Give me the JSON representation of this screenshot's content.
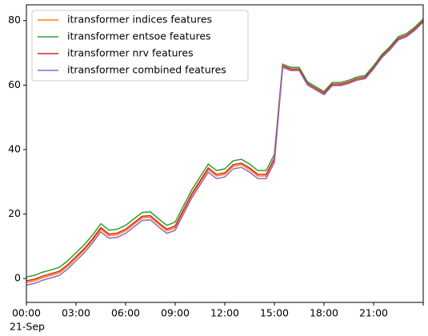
{
  "chart_data": {
    "type": "line",
    "x": [
      0,
      0.5,
      1,
      1.5,
      2,
      2.5,
      3,
      3.5,
      4,
      4.5,
      5,
      5.5,
      6,
      6.5,
      7,
      7.5,
      8,
      8.5,
      9,
      9.5,
      10,
      10.5,
      11,
      11.5,
      12,
      12.5,
      13,
      13.5,
      14,
      14.5,
      15,
      15.5,
      16,
      16.5,
      17,
      17.5,
      18,
      18.5,
      19,
      19.5,
      20,
      20.5,
      21,
      21.5,
      22,
      22.5,
      23,
      23.5,
      24
    ],
    "series": [
      {
        "name": "itransformer indices features",
        "color": "#ff7f0e",
        "values": [
          -1.2,
          -0.7,
          0.3,
          1,
          1.8,
          3.8,
          6.3,
          8.8,
          11.8,
          15.3,
          13.3,
          13.6,
          14.8,
          16.8,
          18.8,
          19,
          16.8,
          14.8,
          15.8,
          20.8,
          25.8,
          29.8,
          33.8,
          31.8,
          32.3,
          34.8,
          35.3,
          33.8,
          31.8,
          31.8,
          36.8,
          65.8,
          64.8,
          64.8,
          60.3,
          58.8,
          57.3,
          60.1,
          60.1,
          60.8,
          61.8,
          62.3,
          65.3,
          68.8,
          71.3,
          74.3,
          75.3,
          77.3,
          79.8
        ]
      },
      {
        "name": "itransformer entsoe features",
        "color": "#2ca02c",
        "values": [
          0.5,
          1,
          2,
          2.7,
          3.5,
          5.5,
          8,
          10.5,
          13.5,
          17,
          15,
          15.3,
          16.5,
          18.5,
          20.5,
          20.7,
          18.5,
          16.5,
          17.5,
          22.5,
          27.5,
          31.5,
          35.5,
          33.5,
          34,
          36.5,
          37,
          35.5,
          33.5,
          33.5,
          38.5,
          66.5,
          65.5,
          65.5,
          61,
          59.5,
          58,
          60.8,
          60.8,
          61.5,
          62.5,
          63,
          66,
          69.5,
          72,
          75,
          76,
          78,
          80.5
        ]
      },
      {
        "name": "itransformer nrv features",
        "color": "#d62728",
        "values": [
          -0.7,
          -0.2,
          0.8,
          1.5,
          2.3,
          4.3,
          6.8,
          9.3,
          12.3,
          15.8,
          13.8,
          14.1,
          15.3,
          17.3,
          19.3,
          19.5,
          17.3,
          15.3,
          16.3,
          21.3,
          26.3,
          30.3,
          34.3,
          32.3,
          32.8,
          35.3,
          35.8,
          34.3,
          32.3,
          32.3,
          37.3,
          66,
          65,
          65,
          60.5,
          59,
          57.5,
          60.3,
          60.3,
          61,
          62,
          62.5,
          65.5,
          69,
          71.5,
          74.5,
          75.5,
          77.5,
          80
        ]
      },
      {
        "name": "itransformer combined features",
        "color": "#9467bd",
        "values": [
          -2,
          -1.5,
          -0.5,
          0.2,
          1,
          3,
          5.5,
          8,
          11,
          14.5,
          12.5,
          12.8,
          14,
          16,
          18,
          18.2,
          16,
          14,
          15,
          20,
          25,
          29,
          33,
          31,
          31.5,
          34,
          34.5,
          33,
          31,
          31,
          36,
          65.5,
          64.5,
          64.5,
          60,
          58.5,
          57,
          59.8,
          59.8,
          60.5,
          61.5,
          62,
          65,
          68.5,
          71,
          74,
          75,
          77,
          79.5
        ]
      }
    ],
    "xlim": [
      0,
      24
    ],
    "ylim": [
      -7.4,
      84.9
    ],
    "xticks": [
      {
        "value": 0,
        "label": "00:00"
      },
      {
        "value": 3,
        "label": "03:00"
      },
      {
        "value": 6,
        "label": "06:00"
      },
      {
        "value": 9,
        "label": "09:00"
      },
      {
        "value": 12,
        "label": "12:00"
      },
      {
        "value": 15,
        "label": "15:00"
      },
      {
        "value": 18,
        "label": "18:00"
      },
      {
        "value": 21,
        "label": "21:00"
      },
      {
        "value": 24,
        "label": null
      }
    ],
    "date_label": "21-Sep",
    "yticks": [
      0,
      20,
      40,
      60,
      80
    ],
    "legend": "upper left",
    "grid": false
  }
}
